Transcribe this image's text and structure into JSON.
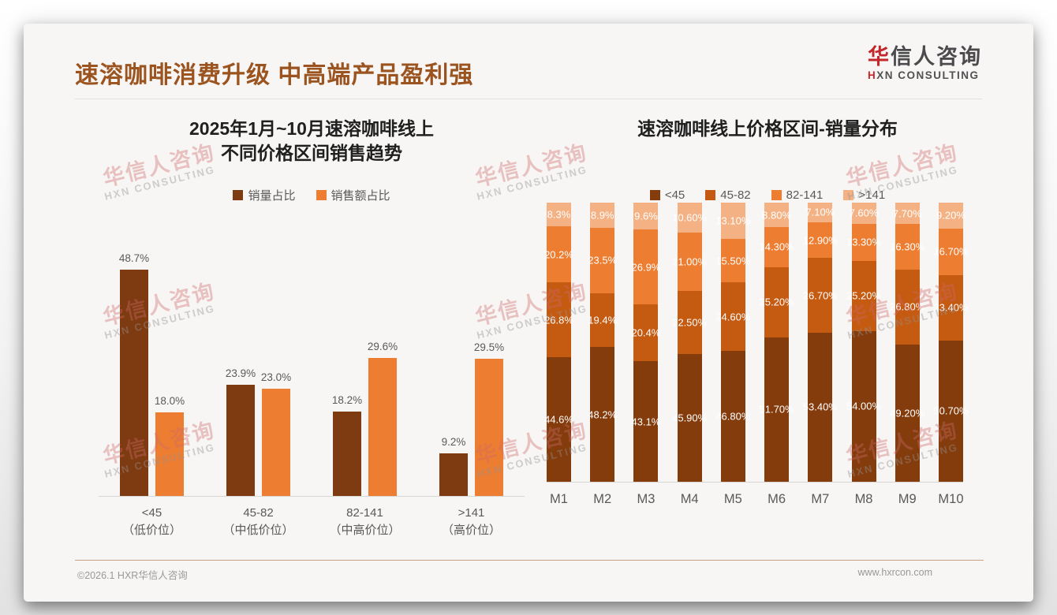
{
  "header": {
    "title": "速溶咖啡消费升级 中高端产品盈利强"
  },
  "logo": {
    "cn_red": "华",
    "cn_rest": "信人咨询",
    "en_red": "H",
    "en_rest": "XN CONSULTING"
  },
  "watermark": {
    "cn": "华信人咨询",
    "en": "HXN CONSULTING"
  },
  "footer": {
    "left": "©2026.1 HXR华信人咨询",
    "right": "www.hxrcon.com"
  },
  "colors": {
    "title_accent": "#9b541f",
    "logo_red": "#c3272b",
    "dark_brown": "#7e3a10",
    "stack_dark_brown": "#843C0C",
    "burnt_orange": "#C55A11",
    "orange": "#ED7D31",
    "light_peach": "#F4B183",
    "axis_line": "#d8d6d3",
    "footer_rule": "#c8a285"
  },
  "chart_data": [
    {
      "type": "bar",
      "title_lines": [
        "2025年1月~10月速溶咖啡线上",
        "不同价格区间销售趋势"
      ],
      "categories": [
        "<45",
        "45-82",
        "82-141",
        ">141"
      ],
      "category_sublabels": [
        "（低价位）",
        "（中低价位）",
        "（中高价位）",
        "（高价位）"
      ],
      "series": [
        {
          "name": "销量占比",
          "color": "#7e3a10",
          "values": [
            48.7,
            23.9,
            18.2,
            9.2
          ],
          "labels": [
            "48.7%",
            "23.9%",
            "18.2%",
            "9.2%"
          ]
        },
        {
          "name": "销售额占比",
          "color": "#ED7D31",
          "values": [
            18.0,
            23.0,
            29.6,
            29.5
          ],
          "labels": [
            "18.0%",
            "23.0%",
            "29.6%",
            "29.5%"
          ]
        }
      ],
      "xlabel": "",
      "ylabel": "",
      "ylim": [
        0,
        50
      ],
      "grid": false,
      "legend_position": "top"
    },
    {
      "type": "stacked-bar",
      "title": "速溶咖啡线上价格区间-销量分布",
      "categories": [
        "M1",
        "M2",
        "M3",
        "M4",
        "M5",
        "M6",
        "M7",
        "M8",
        "M9",
        "M10"
      ],
      "series": [
        {
          "name": "<45",
          "color": "#843C0C",
          "values": [
            44.6,
            48.2,
            43.1,
            45.9,
            46.8,
            51.7,
            53.4,
            54.0,
            49.2,
            50.7
          ],
          "labels": [
            "44.6%",
            "48.2%",
            "43.1%",
            "45.90%",
            "46.80%",
            "51.70%",
            "53.40%",
            "54.00%",
            "49.20%",
            "50.70%"
          ]
        },
        {
          "name": "45-82",
          "color": "#C55A11",
          "values": [
            26.8,
            19.4,
            20.4,
            22.5,
            24.6,
            25.2,
            26.7,
            25.2,
            26.8,
            23.4
          ],
          "labels": [
            "26.8%",
            "19.4%",
            "20.4%",
            "22.50%",
            "24.60%",
            "25.20%",
            "26.70%",
            "25.20%",
            "26.80%",
            "23.40%"
          ]
        },
        {
          "name": "82-141",
          "color": "#ED7D31",
          "values": [
            20.2,
            23.5,
            26.9,
            21.0,
            15.5,
            14.3,
            12.9,
            13.3,
            16.3,
            16.7
          ],
          "labels": [
            "20.2%",
            "23.5%",
            "26.9%",
            "21.00%",
            "15.50%",
            "14.30%",
            "12.90%",
            "13.30%",
            "16.30%",
            "16.70%"
          ]
        },
        {
          "name": ">141",
          "color": "#F4B183",
          "values": [
            8.3,
            8.9,
            9.6,
            10.6,
            13.1,
            8.8,
            7.1,
            7.6,
            7.7,
            9.2
          ],
          "labels": [
            "8.3%",
            "8.9%",
            "9.6%",
            "10.60%",
            "13.10%",
            "8.80%",
            "7.10%",
            "7.60%",
            "7.70%",
            "9.20%"
          ]
        }
      ],
      "xlabel": "",
      "ylabel": "",
      "ylim": [
        0,
        100
      ],
      "grid": false,
      "legend_position": "top"
    }
  ]
}
